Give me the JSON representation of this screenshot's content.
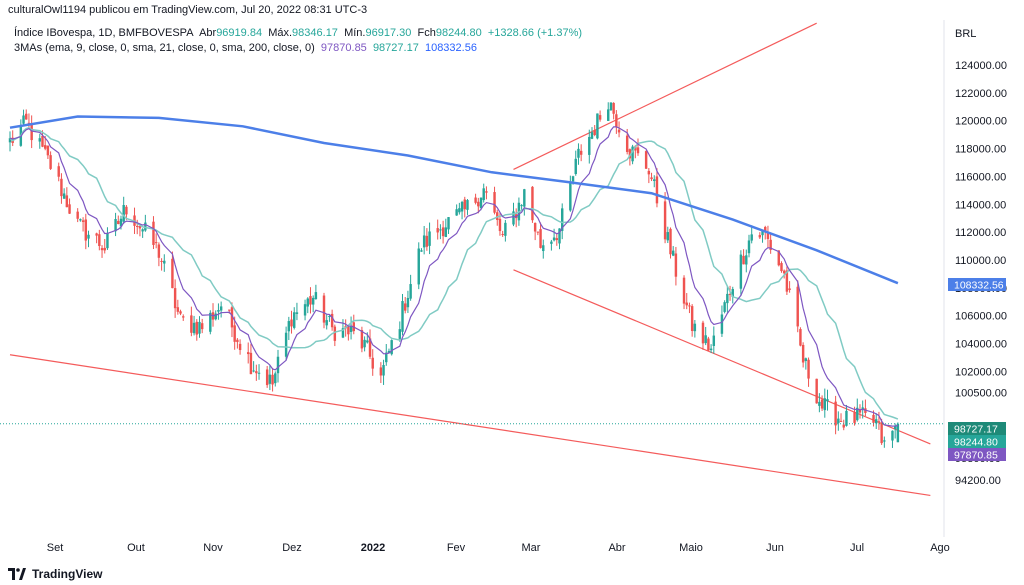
{
  "header": {
    "attribution": "culturalOwl1194 publicou em TradingView.com, Jul 20, 2022 08:31 UTC-3"
  },
  "legend": {
    "symbol": "Índice IBovespa, 1D, BMFBOVESPA",
    "abr_label": "Abr",
    "abr_value": "96919.84",
    "max_label": "Máx.",
    "max_value": "98346.17",
    "min_label": "Mín.",
    "min_value": "96917.30",
    "fch_label": "Fch",
    "fch_value": "98244.80",
    "change": "+1328.66 (+1.37%)",
    "ma_label": "3MAs (ema, 9, close, 0, sma, 21, close, 0, sma, 200, close, 0)",
    "ma_values": [
      "97870.85",
      "98727.17",
      "108332.56"
    ]
  },
  "footer": {
    "brand": "TradingView"
  },
  "colors": {
    "up": "#26a69a",
    "down": "#ef5350",
    "ema9": "#7e57c2",
    "sma21": "#80cbc4",
    "sma200": "#4c7fe8",
    "trendline": "#f45b5b"
  },
  "chart_data": {
    "type": "candlestick",
    "currency": "BRL",
    "y_ticks": [
      "94200.00",
      "95800.00",
      "100500.00",
      "102000.00",
      "104000.00",
      "106000.00",
      "108000.00",
      "110000.00",
      "112000.00",
      "114000.00",
      "116000.00",
      "118000.00",
      "120000.00",
      "122000.00",
      "124000.00"
    ],
    "x_labels": [
      "Set",
      "Out",
      "Nov",
      "Dez",
      "2022",
      "Fev",
      "Mar",
      "Abr",
      "Maio",
      "Jun",
      "Jul",
      "Ago"
    ],
    "price_badges": [
      {
        "value": "108332.56",
        "series": "sma200"
      },
      {
        "value": "98727.17",
        "series": "sma21"
      },
      {
        "value": "98244.80",
        "series": "close"
      },
      {
        "value": "97870.85",
        "series": "ema9"
      }
    ],
    "price_anchors": [
      {
        "date": "2021-08-26",
        "price": 118500
      },
      {
        "date": "2021-09-01",
        "price": 119800
      },
      {
        "date": "2021-09-10",
        "price": 116800
      },
      {
        "date": "2021-09-20",
        "price": 112500
      },
      {
        "date": "2021-09-30",
        "price": 110900
      },
      {
        "date": "2021-10-08",
        "price": 113800
      },
      {
        "date": "2021-10-20",
        "price": 110600
      },
      {
        "date": "2021-10-28",
        "price": 105600
      },
      {
        "date": "2021-11-05",
        "price": 105200
      },
      {
        "date": "2021-11-12",
        "price": 106800
      },
      {
        "date": "2021-11-23",
        "price": 102600
      },
      {
        "date": "2021-12-01",
        "price": 101100
      },
      {
        "date": "2021-12-08",
        "price": 106000
      },
      {
        "date": "2021-12-16",
        "price": 107300
      },
      {
        "date": "2021-12-23",
        "price": 105000
      },
      {
        "date": "2021-12-30",
        "price": 104800
      },
      {
        "date": "2022-01-04",
        "price": 103800
      },
      {
        "date": "2022-01-10",
        "price": 101600
      },
      {
        "date": "2022-01-17",
        "price": 105700
      },
      {
        "date": "2022-01-25",
        "price": 111000
      },
      {
        "date": "2022-02-02",
        "price": 112500
      },
      {
        "date": "2022-02-10",
        "price": 113500
      },
      {
        "date": "2022-02-17",
        "price": 115100
      },
      {
        "date": "2022-02-24",
        "price": 111600
      },
      {
        "date": "2022-03-04",
        "price": 114800
      },
      {
        "date": "2022-03-10",
        "price": 111100
      },
      {
        "date": "2022-03-17",
        "price": 112200
      },
      {
        "date": "2022-03-24",
        "price": 117500
      },
      {
        "date": "2022-03-31",
        "price": 119900
      },
      {
        "date": "2022-04-04",
        "price": 121600
      },
      {
        "date": "2022-04-12",
        "price": 117900
      },
      {
        "date": "2022-04-19",
        "price": 116600
      },
      {
        "date": "2022-04-28",
        "price": 109900
      },
      {
        "date": "2022-05-05",
        "price": 105300
      },
      {
        "date": "2022-05-12",
        "price": 103600
      },
      {
        "date": "2022-05-20",
        "price": 108500
      },
      {
        "date": "2022-05-27",
        "price": 111900
      },
      {
        "date": "2022-06-01",
        "price": 111800
      },
      {
        "date": "2022-06-08",
        "price": 108900
      },
      {
        "date": "2022-06-15",
        "price": 102800
      },
      {
        "date": "2022-06-22",
        "price": 99500
      },
      {
        "date": "2022-06-30",
        "price": 98500
      },
      {
        "date": "2022-07-06",
        "price": 98700
      },
      {
        "date": "2022-07-12",
        "price": 98300
      },
      {
        "date": "2022-07-15",
        "price": 96600
      },
      {
        "date": "2022-07-20",
        "price": 98244.8
      }
    ],
    "sma200_anchors": [
      {
        "date": "2021-08-26",
        "value": 119500
      },
      {
        "date": "2021-09-20",
        "value": 120300
      },
      {
        "date": "2021-10-20",
        "value": 120200
      },
      {
        "date": "2021-11-20",
        "value": 119600
      },
      {
        "date": "2021-12-20",
        "value": 118400
      },
      {
        "date": "2022-01-20",
        "value": 117500
      },
      {
        "date": "2022-02-20",
        "value": 116300
      },
      {
        "date": "2022-03-20",
        "value": 115600
      },
      {
        "date": "2022-04-20",
        "value": 114800
      },
      {
        "date": "2022-05-20",
        "value": 112900
      },
      {
        "date": "2022-06-20",
        "value": 110700
      },
      {
        "date": "2022-07-20",
        "value": 108332.56
      }
    ],
    "trendlines": [
      {
        "from": {
          "date": "2021-08-26",
          "price": 103200
        },
        "to": {
          "date": "2022-08-01",
          "price": 93100
        }
      },
      {
        "from": {
          "date": "2022-02-28",
          "price": 109300
        },
        "to": {
          "date": "2022-08-01",
          "price": 96800
        }
      },
      {
        "from": {
          "date": "2022-02-28",
          "price": 116500
        },
        "to": {
          "date": "2022-06-20",
          "price": 127000
        }
      }
    ],
    "last_close": 98244.8
  }
}
